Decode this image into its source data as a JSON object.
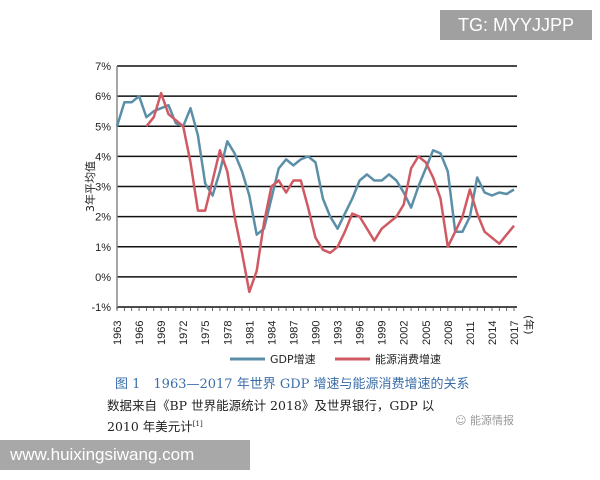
{
  "watermarks": {
    "top": "TG: MYYJJPP",
    "bottom": "www.huixingsiwang.com",
    "wechat": "能源情报"
  },
  "caption": {
    "title": "图 1　1963—2017 年世界 GDP 增速与能源消费增速的关系",
    "note_line1": "数据来自《BP 世界能源统计 2018》及世界银行，GDP 以",
    "note_line2": "2010 年美元计",
    "note_ref": "[1]"
  },
  "chart_data": {
    "type": "line",
    "ylabel": "3年平均值",
    "xlabel": "(年)",
    "ylim": [
      -1,
      7
    ],
    "yticks": [
      "-1%",
      "0%",
      "1%",
      "2%",
      "3%",
      "4%",
      "5%",
      "6%",
      "7%"
    ],
    "xticks": [
      "1963",
      "1966",
      "1969",
      "1972",
      "1975",
      "1978",
      "1981",
      "1984",
      "1987",
      "1990",
      "1993",
      "1996",
      "1999",
      "2002",
      "2005",
      "2008",
      "2011",
      "2014",
      "2017"
    ],
    "grid": "horizontal",
    "legend": "bottom",
    "series": [
      {
        "name": "GDP增速",
        "color": "#5b8fa8",
        "start": 1963,
        "values": [
          5.0,
          5.8,
          5.8,
          6.0,
          5.3,
          5.5,
          5.6,
          5.7,
          5.1,
          5.0,
          5.6,
          4.7,
          3.1,
          2.7,
          3.5,
          4.5,
          4.1,
          3.5,
          2.7,
          1.4,
          1.6,
          2.6,
          3.6,
          3.9,
          3.7,
          3.9,
          4.0,
          3.8,
          2.6,
          2.0,
          1.6,
          2.1,
          2.6,
          3.2,
          3.4,
          3.2,
          3.2,
          3.4,
          3.2,
          2.8,
          2.3,
          3.0,
          3.6,
          4.2,
          4.1,
          3.5,
          1.5,
          1.5,
          2.0,
          3.3,
          2.8,
          2.7,
          2.8,
          2.75,
          2.9
        ]
      },
      {
        "name": "能源消费增速",
        "color": "#d05a63",
        "start": 1967,
        "values": [
          5.0,
          5.3,
          6.1,
          5.4,
          5.2,
          5.0,
          3.8,
          2.2,
          2.2,
          3.2,
          4.2,
          3.5,
          2.0,
          0.8,
          -0.5,
          0.2,
          1.8,
          3.0,
          3.2,
          2.8,
          3.2,
          3.2,
          2.3,
          1.3,
          0.9,
          0.8,
          1.0,
          1.5,
          2.1,
          2.0,
          1.6,
          1.2,
          1.6,
          1.8,
          2.0,
          2.4,
          3.6,
          4.0,
          3.8,
          3.3,
          2.6,
          1.0,
          1.5,
          2.0,
          2.9,
          2.1,
          1.5,
          1.3,
          1.1,
          1.4,
          1.7
        ]
      }
    ]
  }
}
